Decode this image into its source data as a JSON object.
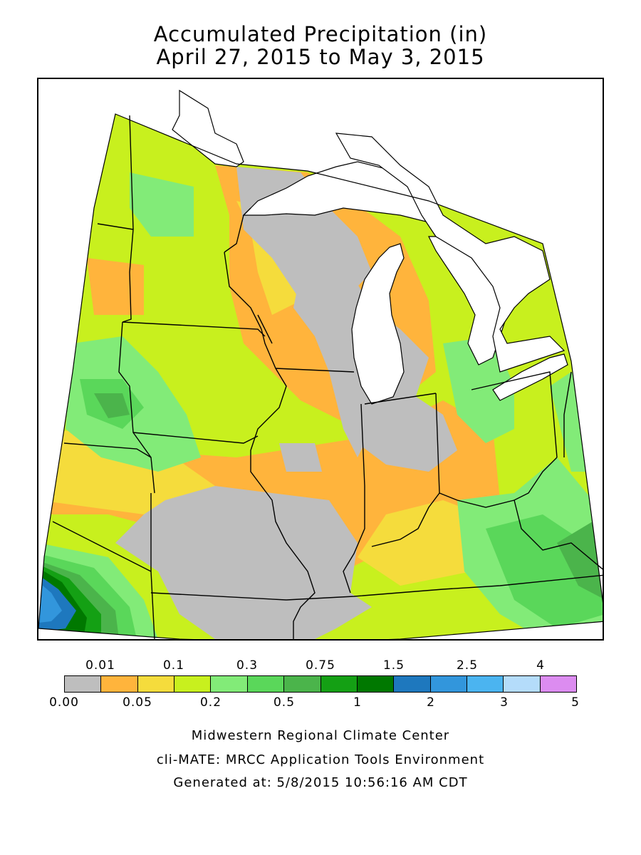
{
  "title": {
    "line1": "Accumulated Precipitation (in)",
    "line2": "April 27, 2015 to May 3, 2015"
  },
  "legend": {
    "upper_labels": [
      "0.01",
      "0.1",
      "0.3",
      "0.75",
      "1.5",
      "2.5",
      "4"
    ],
    "lower_labels": [
      "0.00",
      "0.05",
      "0.2",
      "0.5",
      "1",
      "2",
      "3",
      "5"
    ],
    "colors": [
      "#bebebe",
      "#ffb43c",
      "#f5dc3c",
      "#c8f01e",
      "#82eb78",
      "#5ad75a",
      "#4bb44b",
      "#14a014",
      "#007800",
      "#1e78be",
      "#3296dc",
      "#4bb4f0",
      "#b4dcfa",
      "#dc8cf0"
    ]
  },
  "footer": {
    "line1": "Midwestern Regional Climate Center",
    "line2": "cli-MATE: MRCC Application Tools Environment",
    "line3": "Generated at: 5/8/2015 10:56:16 AM CDT"
  }
}
